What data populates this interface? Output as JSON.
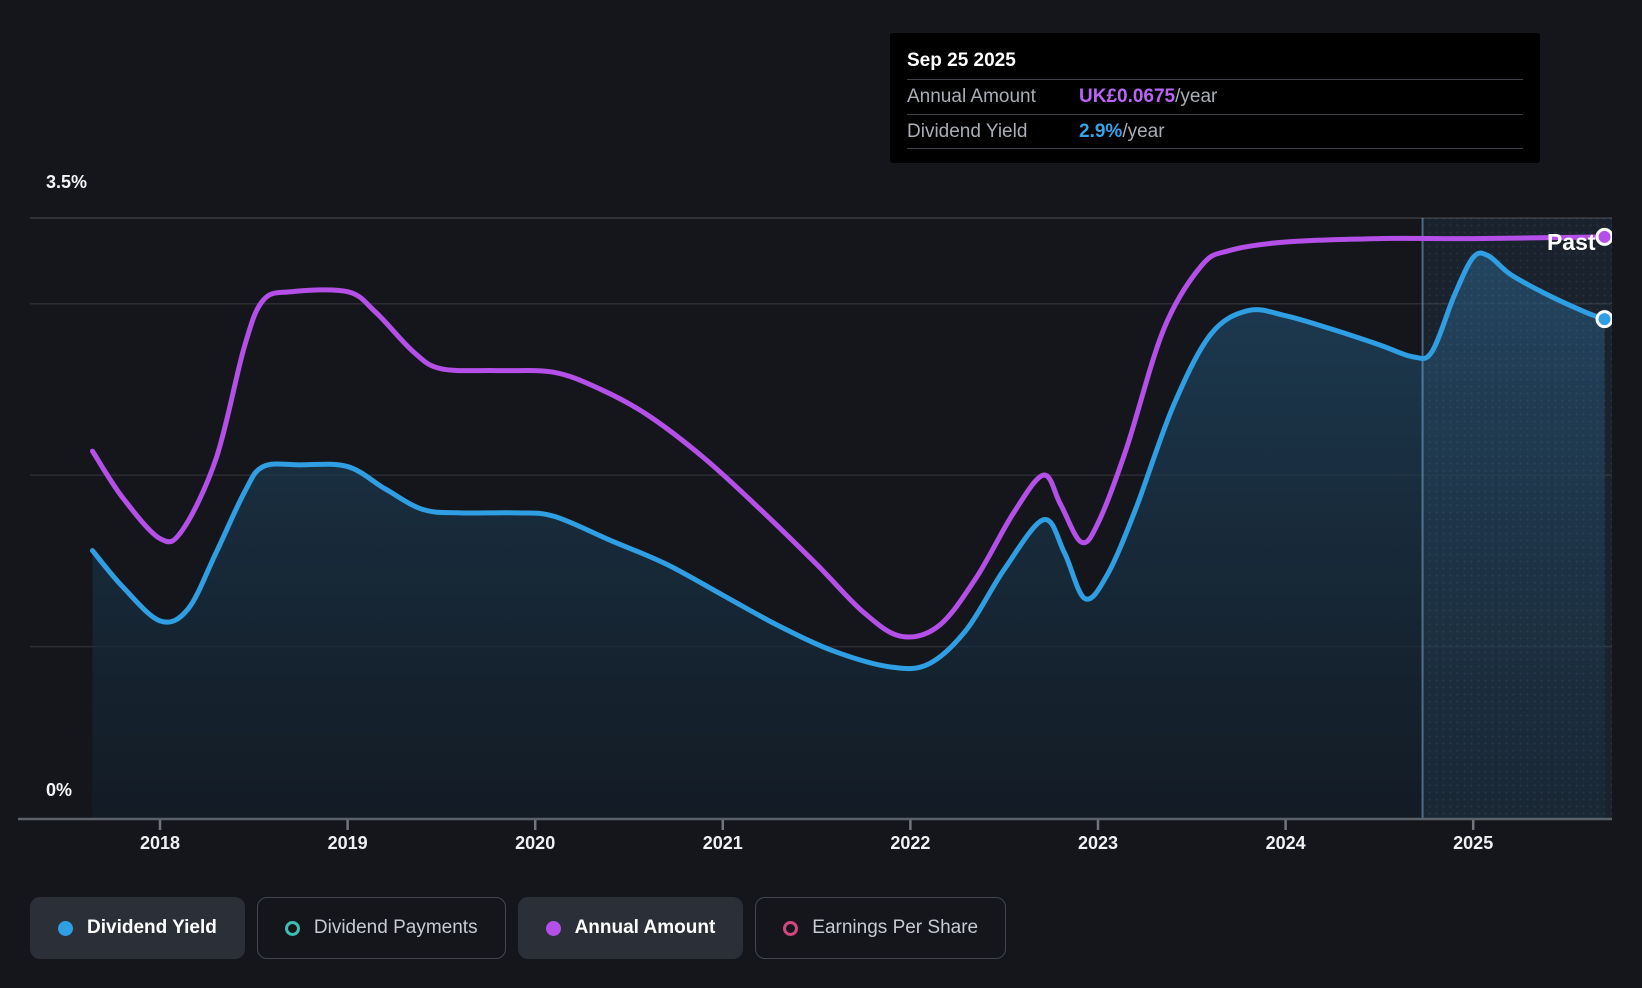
{
  "tooltip": {
    "date": "Sep 25 2025",
    "rows": [
      {
        "label": "Annual Amount",
        "value": "UK£0.0675",
        "suffix": "/year",
        "color": "#b964f5"
      },
      {
        "label": "Dividend Yield",
        "value": "2.9%",
        "suffix": "/year",
        "color": "#35a3ea"
      }
    ]
  },
  "axis": {
    "y_top_label": "3.5%",
    "y_bottom_label": "0%"
  },
  "legend": {
    "items": [
      {
        "label": "Dividend Yield",
        "color": "#2f9ee3",
        "marker": "filled",
        "active": true
      },
      {
        "label": "Dividend Payments",
        "color": "#3fbdb0",
        "marker": "hollow",
        "active": false
      },
      {
        "label": "Annual Amount",
        "color": "#b44fe8",
        "marker": "filled",
        "active": true
      },
      {
        "label": "Earnings Per Share",
        "color": "#d0487f",
        "marker": "hollow",
        "active": false
      }
    ]
  },
  "colors": {
    "background": "#14161c",
    "tooltip_background": "#000000",
    "dividend_yield_line": "#2f9ee3",
    "annual_amount_line": "#b44fe8",
    "grid_line": "rgba(255,255,255,0.10)",
    "grid_line_top": "rgba(255,255,255,0.16)",
    "axis_line": "#5c6169",
    "divider_line": "rgba(130,180,225,0.5)"
  },
  "chart_data": {
    "type": "line",
    "x_tick_labels": [
      "2018",
      "2019",
      "2020",
      "2021",
      "2022",
      "2023",
      "2024",
      "2025"
    ],
    "y_tick_labels_shown": [
      "3.5%",
      "0%"
    ],
    "ylim": [
      0,
      3.5
    ],
    "xlim": [
      2017.64,
      2025.73
    ],
    "gridline_values": [
      3.5,
      3,
      2,
      1
    ],
    "baseline_value": 0,
    "grid_on": true,
    "legend_position": "bottom",
    "past_divider_x": 2024.73,
    "past_region_label": "Past",
    "series": [
      {
        "name": "Dividend Yield",
        "unit": "%",
        "color": "#2f9ee3",
        "area": true,
        "end_marker": true,
        "points": [
          [
            2017.64,
            1.56
          ],
          [
            2017.8,
            1.35
          ],
          [
            2018.0,
            1.15
          ],
          [
            2018.15,
            1.22
          ],
          [
            2018.3,
            1.55
          ],
          [
            2018.45,
            1.9
          ],
          [
            2018.55,
            2.05
          ],
          [
            2018.75,
            2.06
          ],
          [
            2019.0,
            2.05
          ],
          [
            2019.2,
            1.92
          ],
          [
            2019.4,
            1.8
          ],
          [
            2019.6,
            1.78
          ],
          [
            2019.9,
            1.78
          ],
          [
            2020.1,
            1.76
          ],
          [
            2020.4,
            1.62
          ],
          [
            2020.7,
            1.48
          ],
          [
            2021.0,
            1.3
          ],
          [
            2021.3,
            1.12
          ],
          [
            2021.6,
            0.97
          ],
          [
            2021.9,
            0.88
          ],
          [
            2022.1,
            0.9
          ],
          [
            2022.3,
            1.1
          ],
          [
            2022.5,
            1.45
          ],
          [
            2022.71,
            1.74
          ],
          [
            2022.82,
            1.55
          ],
          [
            2022.93,
            1.28
          ],
          [
            2023.05,
            1.42
          ],
          [
            2023.2,
            1.8
          ],
          [
            2023.4,
            2.4
          ],
          [
            2023.6,
            2.82
          ],
          [
            2023.8,
            2.96
          ],
          [
            2024.0,
            2.93
          ],
          [
            2024.25,
            2.85
          ],
          [
            2024.5,
            2.76
          ],
          [
            2024.68,
            2.69
          ],
          [
            2024.78,
            2.72
          ],
          [
            2024.9,
            3.05
          ],
          [
            2025.0,
            3.27
          ],
          [
            2025.08,
            3.28
          ],
          [
            2025.2,
            3.17
          ],
          [
            2025.4,
            3.05
          ],
          [
            2025.6,
            2.95
          ],
          [
            2025.7,
            2.91
          ]
        ]
      },
      {
        "name": "Annual Amount",
        "unit": "UK£ (scaled)",
        "color": "#b44fe8",
        "area": false,
        "end_marker": true,
        "points": [
          [
            2017.64,
            2.14
          ],
          [
            2017.8,
            1.87
          ],
          [
            2018.0,
            1.63
          ],
          [
            2018.12,
            1.68
          ],
          [
            2018.3,
            2.1
          ],
          [
            2018.45,
            2.75
          ],
          [
            2018.55,
            3.02
          ],
          [
            2018.7,
            3.07
          ],
          [
            2019.0,
            3.07
          ],
          [
            2019.15,
            2.95
          ],
          [
            2019.35,
            2.72
          ],
          [
            2019.5,
            2.62
          ],
          [
            2019.8,
            2.61
          ],
          [
            2020.1,
            2.6
          ],
          [
            2020.35,
            2.5
          ],
          [
            2020.6,
            2.35
          ],
          [
            2020.9,
            2.1
          ],
          [
            2021.2,
            1.8
          ],
          [
            2021.5,
            1.48
          ],
          [
            2021.75,
            1.2
          ],
          [
            2021.95,
            1.06
          ],
          [
            2022.15,
            1.12
          ],
          [
            2022.35,
            1.4
          ],
          [
            2022.55,
            1.78
          ],
          [
            2022.71,
            2.0
          ],
          [
            2022.8,
            1.83
          ],
          [
            2022.91,
            1.61
          ],
          [
            2023.0,
            1.72
          ],
          [
            2023.15,
            2.15
          ],
          [
            2023.35,
            2.85
          ],
          [
            2023.55,
            3.22
          ],
          [
            2023.7,
            3.31
          ],
          [
            2024.0,
            3.36
          ],
          [
            2024.5,
            3.38
          ],
          [
            2025.0,
            3.38
          ],
          [
            2025.7,
            3.39
          ]
        ]
      }
    ]
  }
}
